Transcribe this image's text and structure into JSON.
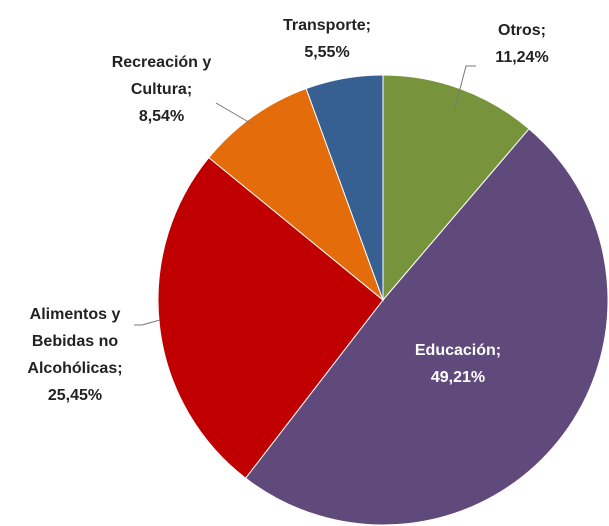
{
  "chart_data": {
    "type": "pie",
    "categories": [
      "Otros;",
      "Educación;",
      "Alimentos y Bebidas no Alcohólicas;",
      "Recreación y Cultura;",
      "Transporte;"
    ],
    "values": [
      11.24,
      49.21,
      25.45,
      8.54,
      5.55
    ],
    "value_labels": [
      "11,24%",
      "49,21%",
      "25,45%",
      "8,54%",
      "5,55%"
    ],
    "colors": [
      "#77933c",
      "#604a7b",
      "#c00000",
      "#e46c0a",
      "#376092"
    ]
  }
}
